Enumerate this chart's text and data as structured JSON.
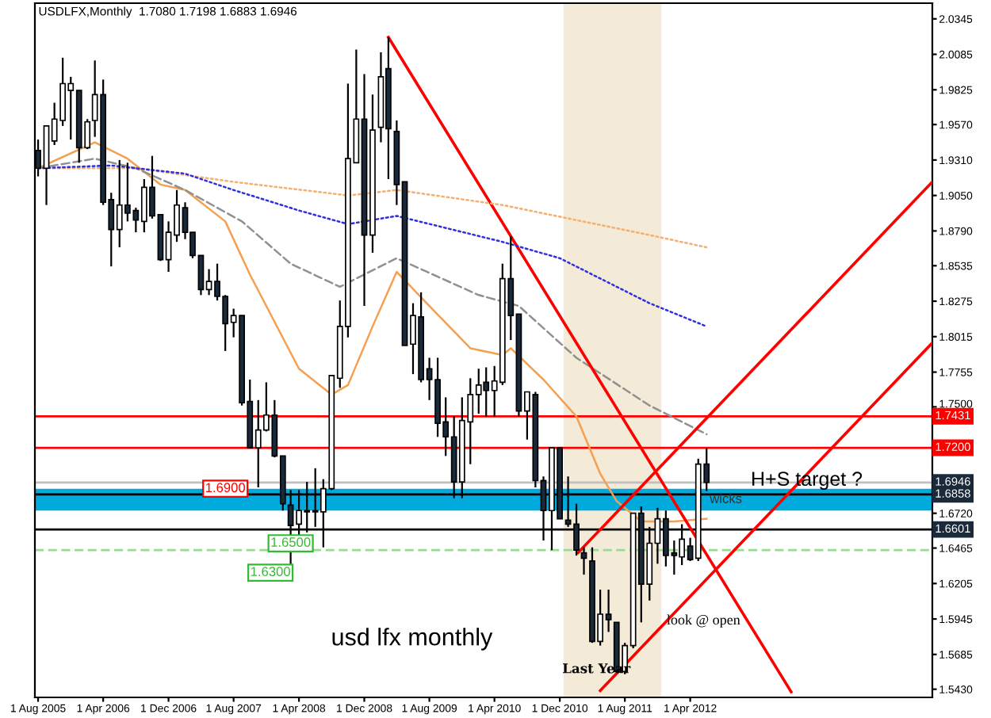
{
  "chart_data": {
    "type": "candlestick",
    "title": "USDLFX,Monthly  1.7080 1.7198 1.6883 1.6946",
    "x": [
      "2005-08",
      "2005-09",
      "2005-10",
      "2005-11",
      "2005-12",
      "2006-01",
      "2006-02",
      "2006-03",
      "2006-04",
      "2006-05",
      "2006-06",
      "2006-07",
      "2006-08",
      "2006-09",
      "2006-10",
      "2006-11",
      "2006-12",
      "2007-01",
      "2007-02",
      "2007-03",
      "2007-04",
      "2007-05",
      "2007-06",
      "2007-07",
      "2007-08",
      "2007-09",
      "2007-10",
      "2007-11",
      "2007-12",
      "2008-01",
      "2008-02",
      "2008-03",
      "2008-04",
      "2008-05",
      "2008-06",
      "2008-07",
      "2008-08",
      "2008-09",
      "2008-10",
      "2008-11",
      "2008-12",
      "2009-01",
      "2009-02",
      "2009-03",
      "2009-04",
      "2009-05",
      "2009-06",
      "2009-07",
      "2009-08",
      "2009-09",
      "2009-10",
      "2009-11",
      "2009-12",
      "2010-01",
      "2010-02",
      "2010-03",
      "2010-04",
      "2010-05",
      "2010-06",
      "2010-07",
      "2010-08",
      "2010-09",
      "2010-10",
      "2010-11",
      "2010-12",
      "2011-01",
      "2011-02",
      "2011-03",
      "2011-04",
      "2011-05",
      "2011-06",
      "2011-07",
      "2011-08",
      "2011-09",
      "2011-10",
      "2011-11",
      "2011-12",
      "2012-01",
      "2012-02",
      "2012-03",
      "2012-04",
      "2012-05",
      "2012-06"
    ],
    "ohlc": [
      [
        1.938,
        1.946,
        1.919,
        1.925
      ],
      [
        1.925,
        1.956,
        1.898,
        1.956
      ],
      [
        1.945,
        1.973,
        1.942,
        1.961
      ],
      [
        1.96,
        2.006,
        1.956,
        1.987
      ],
      [
        1.982,
        1.992,
        1.946,
        1.987
      ],
      [
        1.982,
        1.982,
        1.929,
        1.94
      ],
      [
        1.94,
        1.961,
        1.939,
        1.959
      ],
      [
        1.96,
        2.004,
        1.948,
        1.979
      ],
      [
        1.979,
        1.99,
        1.898,
        1.9
      ],
      [
        1.902,
        1.907,
        1.853,
        1.88
      ],
      [
        1.88,
        1.931,
        1.867,
        1.898
      ],
      [
        1.898,
        1.929,
        1.886,
        1.892
      ],
      [
        1.894,
        1.896,
        1.878,
        1.887
      ],
      [
        1.886,
        1.917,
        1.878,
        1.911
      ],
      [
        1.911,
        1.934,
        1.888,
        1.89
      ],
      [
        1.891,
        1.891,
        1.857,
        1.858
      ],
      [
        1.858,
        1.886,
        1.849,
        1.878
      ],
      [
        1.876,
        1.909,
        1.871,
        1.898
      ],
      [
        1.896,
        1.9,
        1.873,
        1.878
      ],
      [
        1.878,
        1.878,
        1.859,
        1.861
      ],
      [
        1.861,
        1.861,
        1.832,
        1.836
      ],
      [
        1.836,
        1.851,
        1.832,
        1.842
      ],
      [
        1.842,
        1.855,
        1.828,
        1.831
      ],
      [
        1.831,
        1.832,
        1.791,
        1.811
      ],
      [
        1.812,
        1.822,
        1.801,
        1.817
      ],
      [
        1.817,
        1.817,
        1.751,
        1.753
      ],
      [
        1.754,
        1.77,
        1.72,
        1.72
      ],
      [
        1.72,
        1.755,
        1.691,
        1.733
      ],
      [
        1.733,
        1.768,
        1.732,
        1.744
      ],
      [
        1.744,
        1.755,
        1.713,
        1.714
      ],
      [
        1.714,
        1.714,
        1.674,
        1.679
      ],
      [
        1.678,
        1.689,
        1.633,
        1.663
      ],
      [
        1.664,
        1.689,
        1.656,
        1.674
      ],
      [
        1.674,
        1.695,
        1.658,
        1.673
      ],
      [
        1.673,
        1.705,
        1.662,
        1.674
      ],
      [
        1.673,
        1.697,
        1.647,
        1.69
      ],
      [
        1.69,
        1.773,
        1.689,
        1.773
      ],
      [
        1.771,
        1.828,
        1.764,
        1.809
      ],
      [
        1.809,
        1.987,
        1.801,
        1.932
      ],
      [
        1.929,
        2.012,
        1.929,
        1.961
      ],
      [
        1.961,
        1.994,
        1.824,
        1.876
      ],
      [
        1.876,
        1.979,
        1.863,
        1.953
      ],
      [
        1.955,
        2.01,
        1.944,
        1.992
      ],
      [
        1.998,
        2.021,
        1.917,
        1.954
      ],
      [
        1.952,
        1.96,
        1.898,
        1.913
      ],
      [
        1.915,
        1.915,
        1.795,
        1.795
      ],
      [
        1.796,
        1.826,
        1.774,
        1.817
      ],
      [
        1.816,
        1.834,
        1.768,
        1.77
      ],
      [
        1.778,
        1.786,
        1.755,
        1.77
      ],
      [
        1.77,
        1.786,
        1.728,
        1.738
      ],
      [
        1.739,
        1.757,
        1.714,
        1.728
      ],
      [
        1.728,
        1.743,
        1.683,
        1.695
      ],
      [
        1.695,
        1.757,
        1.683,
        1.74
      ],
      [
        1.739,
        1.771,
        1.708,
        1.759
      ],
      [
        1.759,
        1.778,
        1.745,
        1.766
      ],
      [
        1.768,
        1.779,
        1.743,
        1.762
      ],
      [
        1.762,
        1.78,
        1.743,
        1.769
      ],
      [
        1.768,
        1.855,
        1.766,
        1.844
      ],
      [
        1.844,
        1.875,
        1.799,
        1.817
      ],
      [
        1.818,
        1.818,
        1.743,
        1.747
      ],
      [
        1.747,
        1.761,
        1.726,
        1.761
      ],
      [
        1.759,
        1.761,
        1.691,
        1.696
      ],
      [
        1.696,
        1.699,
        1.652,
        1.674
      ],
      [
        1.674,
        1.72,
        1.645,
        1.72
      ],
      [
        1.72,
        1.72,
        1.668,
        1.668
      ],
      [
        1.667,
        1.699,
        1.662,
        1.664
      ],
      [
        1.664,
        1.679,
        1.641,
        1.645
      ],
      [
        1.643,
        1.647,
        1.627,
        1.639
      ],
      [
        1.637,
        1.647,
        1.577,
        1.578
      ],
      [
        1.578,
        1.616,
        1.575,
        1.598
      ],
      [
        1.598,
        1.616,
        1.585,
        1.594
      ],
      [
        1.592,
        1.592,
        1.556,
        1.556
      ],
      [
        1.556,
        1.577,
        1.554,
        1.575
      ],
      [
        1.575,
        1.672,
        1.573,
        1.672
      ],
      [
        1.672,
        1.677,
        1.592,
        1.62
      ],
      [
        1.62,
        1.662,
        1.608,
        1.65
      ],
      [
        1.65,
        1.676,
        1.635,
        1.668
      ],
      [
        1.668,
        1.674,
        1.633,
        1.641
      ],
      [
        1.643,
        1.652,
        1.627,
        1.641
      ],
      [
        1.64,
        1.664,
        1.634,
        1.653
      ],
      [
        1.648,
        1.654,
        1.637,
        1.638
      ],
      [
        1.639,
        1.712,
        1.637,
        1.708
      ],
      [
        1.708,
        1.7198,
        1.6883,
        1.6946
      ]
    ],
    "series": [
      {
        "type": "line",
        "color": "#f5a050",
        "line_style": "solid",
        "x": [
          "2005-08",
          "2006-03",
          "2006-07",
          "2006-11",
          "2007-02",
          "2007-07",
          "2007-10",
          "2008-04",
          "2008-08",
          "2008-10",
          "2009-01",
          "2009-04",
          "2009-08",
          "2010-01",
          "2010-05",
          "2010-06",
          "2010-10",
          "2011-02",
          "2011-05",
          "2011-07",
          "2011-10",
          "2012-02",
          "2012-06"
        ],
        "values": [
          1.925,
          1.944,
          1.932,
          1.913,
          1.909,
          1.886,
          1.847,
          1.778,
          1.759,
          1.766,
          1.809,
          1.849,
          1.824,
          1.793,
          1.788,
          1.793,
          1.77,
          1.743,
          1.701,
          1.681,
          1.666,
          1.666,
          1.668
        ]
      },
      {
        "type": "line",
        "color": "#909090",
        "line_style": "dashed",
        "x": [
          "2005-08",
          "2006-03",
          "2006-08",
          "2007-02",
          "2007-09",
          "2008-03",
          "2008-09",
          "2009-04",
          "2010-02",
          "2010-07",
          "2011-02",
          "2011-11",
          "2012-06"
        ],
        "values": [
          1.925,
          1.932,
          1.925,
          1.909,
          1.886,
          1.855,
          1.838,
          1.859,
          1.832,
          1.824,
          1.786,
          1.751,
          1.73
        ]
      },
      {
        "type": "line",
        "color": "#3030e0",
        "line_style": "dotted",
        "x": [
          "2005-08",
          "2006-05",
          "2007-02",
          "2007-08",
          "2008-04",
          "2008-10",
          "2009-04",
          "2010-05",
          "2010-12",
          "2011-11",
          "2012-06"
        ],
        "values": [
          1.925,
          1.927,
          1.921,
          1.909,
          1.894,
          1.884,
          1.89,
          1.871,
          1.859,
          1.826,
          1.809
        ]
      },
      {
        "type": "line",
        "color": "#f5b070",
        "line_style": "dotted",
        "x": [
          "2005-08",
          "2006-08",
          "2007-08",
          "2008-10",
          "2009-04",
          "2010-05",
          "2011-11",
          "2012-06"
        ],
        "values": [
          1.925,
          1.925,
          1.915,
          1.905,
          1.909,
          1.898,
          1.876,
          1.867
        ]
      },
      {
        "type": "line",
        "color": "#ff0000",
        "line_style": "solid",
        "x": [
          "2009-03",
          "2013-04-13"
        ],
        "values": [
          2.021,
          1.541
        ]
      },
      {
        "type": "line",
        "color": "#ff0000",
        "line_style": "solid",
        "x": [
          "2011-02-07",
          "2014-09-22"
        ],
        "values": [
          1.643,
          1.915
        ]
      },
      {
        "type": "line",
        "color": "#ff0000",
        "line_style": "solid",
        "x": [
          "2011-05-01",
          "2014-09-22"
        ],
        "values": [
          1.542,
          1.797
        ]
      }
    ],
    "xlim": [
      "2005-07-20",
      "2014-09-22"
    ],
    "xticks": [
      {
        "value": "2005-08-01",
        "label": "1 Aug 2005"
      },
      {
        "value": "2006-04-01",
        "label": "1 Apr 2006"
      },
      {
        "value": "2006-12-01",
        "label": "1 Dec 2006"
      },
      {
        "value": "2007-08-01",
        "label": "1 Aug 2007"
      },
      {
        "value": "2008-04-01",
        "label": "1 Apr 2008"
      },
      {
        "value": "2008-12-01",
        "label": "1 Dec 2008"
      },
      {
        "value": "2009-08-01",
        "label": "1 Aug 2009"
      },
      {
        "value": "2010-04-01",
        "label": "1 Apr 2010"
      },
      {
        "value": "2010-12-01",
        "label": "1 Dec 2010"
      },
      {
        "value": "2011-08-01",
        "label": "1 Aug 2011"
      },
      {
        "value": "2012-04-01",
        "label": "1 Apr 2012"
      }
    ],
    "ylim": [
      1.537,
      2.046
    ],
    "yticks": [
      {
        "value": 2.0345,
        "label": "2.0345"
      },
      {
        "value": 2.0085,
        "label": "2.0085"
      },
      {
        "value": 1.9825,
        "label": "1.9825"
      },
      {
        "value": 1.957,
        "label": "1.9570"
      },
      {
        "value": 1.931,
        "label": "1.9310"
      },
      {
        "value": 1.905,
        "label": "1.9050"
      },
      {
        "value": 1.879,
        "label": "1.8790"
      },
      {
        "value": 1.8535,
        "label": "1.8535"
      },
      {
        "value": 1.8275,
        "label": "1.8275"
      },
      {
        "value": 1.8015,
        "label": "1.8015"
      },
      {
        "value": 1.7755,
        "label": "1.7755"
      },
      {
        "value": 1.75,
        "label": "1.7500"
      },
      {
        "value": 1.672,
        "label": "1.6720"
      },
      {
        "value": 1.6465,
        "label": "1.6465"
      },
      {
        "value": 1.6205,
        "label": "1.6205"
      },
      {
        "value": 1.5945,
        "label": "1.5945"
      },
      {
        "value": 1.5685,
        "label": "1.5685"
      },
      {
        "value": 1.543,
        "label": "1.5430"
      }
    ],
    "ref_lines": [
      {
        "axis": "y",
        "value": 1.7431,
        "label": "1.7431",
        "color": "#ff0000",
        "line_style": "solid"
      },
      {
        "axis": "y",
        "value": 1.72,
        "label": "1.7200",
        "color": "#ff0000",
        "line_style": "solid"
      },
      {
        "axis": "y",
        "value": 1.6946,
        "label": "1.6946",
        "color": "#c0c0c0",
        "line_style": "solid"
      },
      {
        "axis": "y",
        "value": 1.6858,
        "label": "1.6858",
        "color": "#000000",
        "line_style": "solid"
      },
      {
        "axis": "y",
        "value": 1.6601,
        "label": "1.6601",
        "color": "#000000",
        "line_style": "solid"
      },
      {
        "axis": "y",
        "value": 1.645,
        "color": "#90e090",
        "line_style": "dashed"
      }
    ],
    "bands": [
      {
        "axis": "y",
        "from": 1.674,
        "to": 1.69,
        "label": "wicks",
        "color": "#00aadd"
      },
      {
        "axis": "x",
        "from": "2010-12-15",
        "to": "2011-12-15",
        "label": "Last Year",
        "color": "#f3ead8"
      }
    ],
    "annotations": [
      "usd lfx monthly",
      "H+S target ?",
      "look @ open",
      {
        "text": "1.6900",
        "x": "2007-07",
        "y": 1.69
      },
      {
        "text": "1.6500",
        "x": "2008-03",
        "y": 1.65
      },
      {
        "text": "1.6300",
        "x": "2008-03",
        "y": 1.633
      }
    ]
  }
}
